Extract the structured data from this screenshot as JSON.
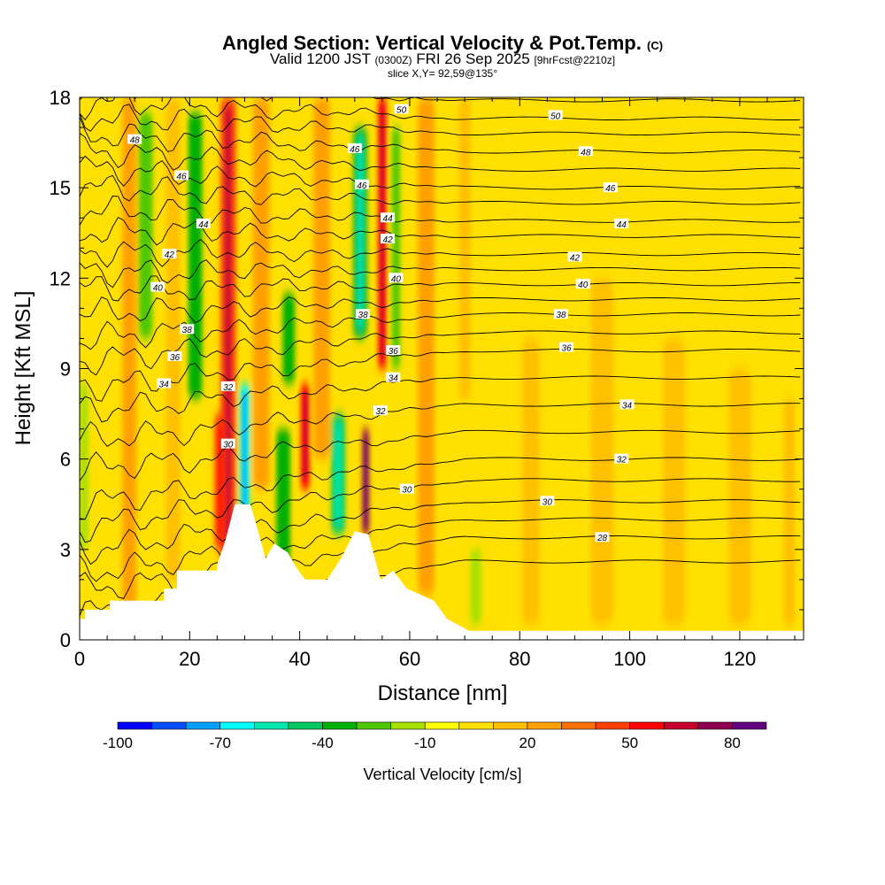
{
  "title": {
    "main": "Angled Section: Vertical Velocity & Pot.Temp.",
    "copyright": "(C)",
    "valid_prefix": "Valid 1200 JST",
    "valid_utc": "(0300Z)",
    "valid_date": "FRI 26 Sep 2025",
    "forecast": "[9hrFcst@2210z]",
    "slice": "slice X,Y= 92,59@135°"
  },
  "chart_data": {
    "type": "heatmap",
    "title": "Angled Section: Vertical Velocity & Pot.Temp.",
    "xlabel": "Distance [nm]",
    "ylabel": "Height [Kft MSL]",
    "xlim": [
      0,
      131.6
    ],
    "ylim": [
      0,
      18
    ],
    "xticks": [
      0,
      20,
      40,
      60,
      80,
      100,
      120
    ],
    "yticks": [
      0,
      3,
      6,
      9,
      12,
      15,
      18
    ],
    "colorbar": {
      "label": "Vertical Velocity [cm/s]",
      "levels": [
        -100,
        -90,
        -80,
        -70,
        -60,
        -50,
        -40,
        -30,
        -20,
        -10,
        0,
        10,
        20,
        30,
        40,
        50,
        60,
        70,
        80,
        90
      ],
      "tick_labels": [
        "-100",
        "-70",
        "-40",
        "-10",
        "20",
        "50",
        "80"
      ],
      "tick_values": [
        -100,
        -70,
        -40,
        -10,
        20,
        50,
        80
      ],
      "colors": [
        "#0000ff",
        "#0050ff",
        "#00a0ff",
        "#00ffff",
        "#00e8b0",
        "#00c860",
        "#00b000",
        "#50c800",
        "#a8e000",
        "#ffff00",
        "#ffe000",
        "#ffc000",
        "#ffa000",
        "#ff7000",
        "#ff4000",
        "#ff0000",
        "#c80030",
        "#900050",
        "#600080"
      ]
    },
    "background_value": 5,
    "streaks": [
      {
        "x": 9,
        "w": 2.5,
        "z0": 0.5,
        "z1": 18,
        "v": 25
      },
      {
        "x": 17,
        "w": 2.5,
        "z0": 2,
        "z1": 18,
        "v": 15
      },
      {
        "x": 12,
        "w": 2.5,
        "z0": 10,
        "z1": 17.5,
        "v": -25
      },
      {
        "x": 21,
        "w": 2.5,
        "z0": 8,
        "z1": 17.5,
        "v": -35
      },
      {
        "x": 27,
        "w": 2.8,
        "z0": 2.5,
        "z1": 18,
        "v": 45
      },
      {
        "x": 25.5,
        "w": 2,
        "z0": 3,
        "z1": 7.5,
        "v": 40
      },
      {
        "x": 30,
        "w": 1.8,
        "z0": 4,
        "z1": 8.5,
        "v": -65
      },
      {
        "x": 33,
        "w": 3,
        "z0": 5,
        "z1": 18,
        "v": 25
      },
      {
        "x": 38,
        "w": 2.2,
        "z0": 8.5,
        "z1": 11.5,
        "v": -35
      },
      {
        "x": 37,
        "w": 2.5,
        "z0": 2,
        "z1": 7,
        "v": -35
      },
      {
        "x": 41,
        "w": 1.6,
        "z0": 5,
        "z1": 8.5,
        "v": 50
      },
      {
        "x": 44,
        "w": 3,
        "z0": 6,
        "z1": 18,
        "v": 20
      },
      {
        "x": 47,
        "w": 2.5,
        "z0": 3.5,
        "z1": 7.5,
        "v": -45
      },
      {
        "x": 51,
        "w": 2.5,
        "z0": 10,
        "z1": 17,
        "v": -40
      },
      {
        "x": 52,
        "w": 1.2,
        "z0": 3.5,
        "z1": 7,
        "v": 75
      },
      {
        "x": 55,
        "w": 1.5,
        "z0": 9,
        "z1": 18,
        "v": 50
      },
      {
        "x": 57.5,
        "w": 1.5,
        "z0": 9,
        "z1": 17,
        "v": -25
      },
      {
        "x": 63,
        "w": 3,
        "z0": 1.5,
        "z1": 18,
        "v": 20
      },
      {
        "x": 70,
        "w": 2,
        "z0": 8,
        "z1": 18,
        "v": 15
      },
      {
        "x": 72,
        "w": 2,
        "z0": 0.5,
        "z1": 3,
        "v": -20
      },
      {
        "x": 0.8,
        "w": 1.5,
        "z0": 3,
        "z1": 8.5,
        "v": -20
      },
      {
        "x": 82,
        "w": 3,
        "z0": 0.5,
        "z1": 10,
        "v": 15
      },
      {
        "x": 95,
        "w": 4,
        "z0": 0.5,
        "z1": 12,
        "v": 15
      },
      {
        "x": 108,
        "w": 4,
        "z0": 0.5,
        "z1": 10,
        "v": 15
      },
      {
        "x": 120,
        "w": 4,
        "z0": 0.5,
        "z1": 9,
        "v": 15
      },
      {
        "x": 129,
        "w": 2,
        "z0": 0.5,
        "z1": 8,
        "v": 15
      }
    ],
    "terrain": [
      [
        0,
        0.7
      ],
      [
        1,
        0.7
      ],
      [
        1,
        1.0
      ],
      [
        5.5,
        1.0
      ],
      [
        5.5,
        1.3
      ],
      [
        12.8,
        1.3
      ],
      [
        12.8,
        1.3
      ],
      [
        15.3,
        1.3
      ],
      [
        15.3,
        1.7
      ],
      [
        17.7,
        1.7
      ],
      [
        17.7,
        2.3
      ],
      [
        25,
        2.3
      ],
      [
        25,
        2.5
      ],
      [
        26.5,
        3.3
      ],
      [
        28.2,
        4.5
      ],
      [
        31,
        4.5
      ],
      [
        32,
        3.9
      ],
      [
        33.8,
        2.7
      ],
      [
        35.4,
        3.2
      ],
      [
        37.8,
        2.9
      ],
      [
        39.4,
        2.4
      ],
      [
        41,
        2.0
      ],
      [
        45,
        2.0
      ],
      [
        47.5,
        2.7
      ],
      [
        50,
        3.6
      ],
      [
        52.5,
        3.5
      ],
      [
        54.7,
        2.0
      ],
      [
        57,
        2.3
      ],
      [
        59.5,
        1.7
      ],
      [
        64.4,
        1.3
      ],
      [
        66.8,
        0.7
      ],
      [
        70.8,
        0.3
      ],
      [
        131.6,
        0.3
      ]
    ],
    "theta_contours": {
      "levels_K": [
        27,
        28,
        29,
        30,
        31,
        32,
        33,
        34,
        35,
        36,
        37,
        38,
        39,
        40,
        41,
        42,
        43,
        44,
        45,
        46,
        47,
        48,
        49,
        50,
        51
      ],
      "height_east_kft": [
        2.6,
        3.4,
        4.0,
        4.6,
        5.3,
        6.0,
        6.9,
        7.8,
        8.7,
        9.6,
        10.2,
        10.8,
        11.3,
        11.8,
        12.3,
        12.8,
        13.4,
        13.9,
        14.5,
        15.0,
        15.6,
        16.2,
        16.8,
        17.3,
        17.9
      ],
      "height_west_kft": [
        0.8,
        1.6,
        2.2,
        3.0,
        3.8,
        4.5,
        5.6,
        6.6,
        7.6,
        8.4,
        9.3,
        10.0,
        10.8,
        11.6,
        12.2,
        12.9,
        13.6,
        14.3,
        15.0,
        15.6,
        16.2,
        16.8,
        17.4,
        17.9,
        18.5
      ]
    },
    "contour_labels": [
      {
        "text": "48",
        "x": 10,
        "z": 16.6
      },
      {
        "text": "46",
        "x": 18.5,
        "z": 15.4
      },
      {
        "text": "44",
        "x": 22.5,
        "z": 13.8
      },
      {
        "text": "42",
        "x": 16.3,
        "z": 12.8
      },
      {
        "text": "40",
        "x": 14.2,
        "z": 11.7
      },
      {
        "text": "38",
        "x": 19.5,
        "z": 10.3
      },
      {
        "text": "36",
        "x": 17.3,
        "z": 9.4
      },
      {
        "text": "34",
        "x": 15.3,
        "z": 8.5
      },
      {
        "text": "32",
        "x": 27,
        "z": 8.4
      },
      {
        "text": "30",
        "x": 27,
        "z": 6.5
      },
      {
        "text": "50",
        "x": 58.5,
        "z": 17.6
      },
      {
        "text": "46",
        "x": 50,
        "z": 16.3
      },
      {
        "text": "46",
        "x": 51.3,
        "z": 15.1
      },
      {
        "text": "44",
        "x": 56,
        "z": 14.0
      },
      {
        "text": "42",
        "x": 56,
        "z": 13.3
      },
      {
        "text": "40",
        "x": 57.5,
        "z": 12.0
      },
      {
        "text": "38",
        "x": 51.5,
        "z": 10.8
      },
      {
        "text": "36",
        "x": 57,
        "z": 9.6
      },
      {
        "text": "34",
        "x": 57,
        "z": 8.7
      },
      {
        "text": "32",
        "x": 54.7,
        "z": 7.6
      },
      {
        "text": "30",
        "x": 59.5,
        "z": 5.0
      },
      {
        "text": "50",
        "x": 86.5,
        "z": 17.4
      },
      {
        "text": "48",
        "x": 92,
        "z": 16.2
      },
      {
        "text": "46",
        "x": 96.5,
        "z": 15.0
      },
      {
        "text": "44",
        "x": 98.5,
        "z": 13.8
      },
      {
        "text": "42",
        "x": 90,
        "z": 12.7
      },
      {
        "text": "40",
        "x": 91.5,
        "z": 11.8
      },
      {
        "text": "38",
        "x": 87.5,
        "z": 10.8
      },
      {
        "text": "36",
        "x": 88.5,
        "z": 9.7
      },
      {
        "text": "34",
        "x": 99.5,
        "z": 7.8
      },
      {
        "text": "32",
        "x": 98.5,
        "z": 6.0
      },
      {
        "text": "30",
        "x": 85,
        "z": 4.6
      },
      {
        "text": "28",
        "x": 95,
        "z": 3.4
      }
    ]
  }
}
